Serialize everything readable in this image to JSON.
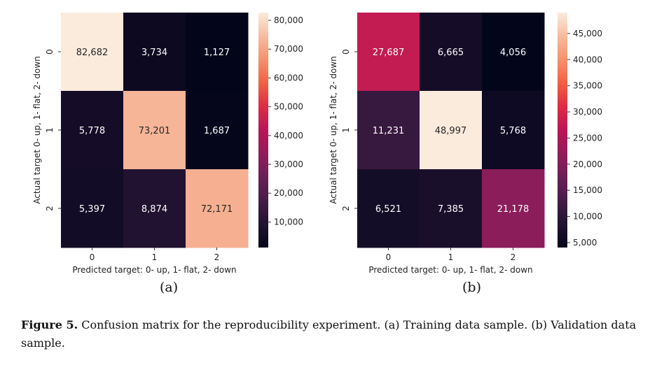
{
  "chart_data": [
    {
      "type": "heatmap",
      "colormap": "rocket",
      "xlabel": "Predicted target: 0- up, 1- flat, 2- down",
      "ylabel": "Actual target  0- up, 1- flat, 2- down",
      "x_categories": [
        "0",
        "1",
        "2"
      ],
      "y_categories": [
        "0",
        "1",
        "2"
      ],
      "matrix": [
        [
          82682,
          3734,
          1127
        ],
        [
          5778,
          73201,
          1687
        ],
        [
          5397,
          8874,
          72171
        ]
      ],
      "cell_labels": [
        [
          "82,682",
          "3,734",
          "1,127"
        ],
        [
          "5,778",
          "73,201",
          "1,687"
        ],
        [
          "5,397",
          "8,874",
          "72,171"
        ]
      ],
      "colorbar_range": [
        1127,
        82682
      ],
      "colorbar_ticks": [
        10000,
        20000,
        30000,
        40000,
        50000,
        60000,
        70000,
        80000
      ],
      "colorbar_labels": [
        "10,000",
        "20,000",
        "30,000",
        "40,000",
        "50,000",
        "60,000",
        "70,000",
        "80,000"
      ]
    },
    {
      "type": "heatmap",
      "colormap": "rocket",
      "xlabel": "Predicted target: 0- up, 1- flat, 2- down",
      "ylabel": "Actual target  0- up, 1- flat, 2- down",
      "x_categories": [
        "0",
        "1",
        "2"
      ],
      "y_categories": [
        "0",
        "1",
        "2"
      ],
      "matrix": [
        [
          27687,
          6665,
          4056
        ],
        [
          11231,
          48997,
          5768
        ],
        [
          6521,
          7385,
          21178
        ]
      ],
      "cell_labels": [
        [
          "27,687",
          "6,665",
          "4,056"
        ],
        [
          "11,231",
          "48,997",
          "5,768"
        ],
        [
          "6,521",
          "7,385",
          "21,178"
        ]
      ],
      "colorbar_range": [
        4056,
        48997
      ],
      "colorbar_ticks": [
        5000,
        10000,
        15000,
        20000,
        25000,
        30000,
        35000,
        40000,
        45000
      ],
      "colorbar_labels": [
        "5,000",
        "10,000",
        "15,000",
        "20,000",
        "25,000",
        "30,000",
        "35,000",
        "40,000",
        "45,000"
      ]
    }
  ],
  "subcaptions": [
    "(a)",
    "(b)"
  ],
  "caption": {
    "label": "Figure 5.",
    "text": " Confusion matrix for the reproducibility experiment. (a) Training data sample. (b) Validation data sample."
  }
}
